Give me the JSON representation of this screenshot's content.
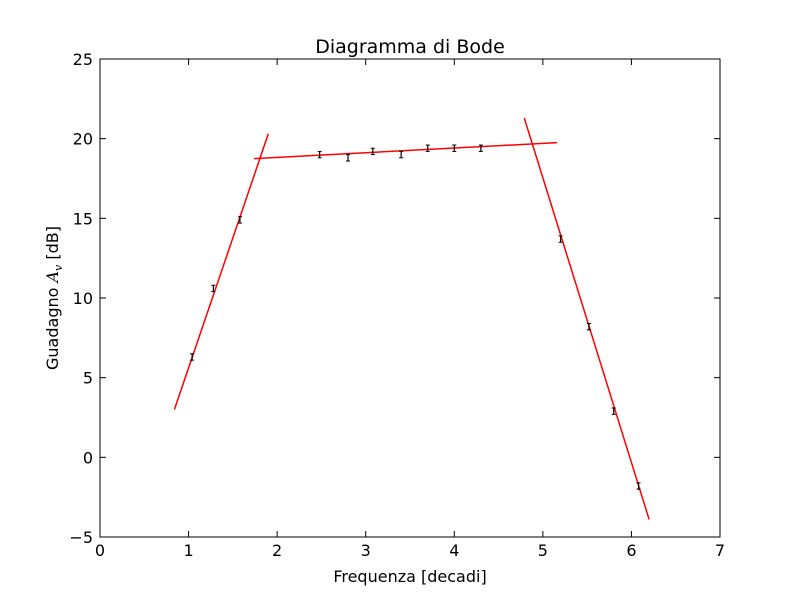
{
  "chart_data": {
    "type": "scatter",
    "title": "Diagramma di Bode",
    "xlabel": "Frequenza [decadi]",
    "ylabel_prefix": "Guadagno ",
    "ylabel_symbol": "A",
    "ylabel_subscript": "v",
    "ylabel_suffix": " [dB]",
    "xlim": [
      0,
      7
    ],
    "ylim": [
      -5,
      25
    ],
    "x_ticks": [
      0,
      1,
      2,
      3,
      4,
      5,
      6,
      7
    ],
    "y_ticks": [
      -5,
      0,
      5,
      10,
      15,
      20,
      25
    ],
    "x_tick_labels": [
      "0",
      "1",
      "2",
      "3",
      "4",
      "5",
      "6",
      "7"
    ],
    "y_tick_labels": [
      "−5",
      "0",
      "5",
      "10",
      "15",
      "20",
      "25"
    ],
    "grid": false,
    "measurements": [
      {
        "x": 1.04,
        "y": 6.3,
        "err": 0.2
      },
      {
        "x": 1.28,
        "y": 10.6,
        "err": 0.2
      },
      {
        "x": 1.58,
        "y": 14.9,
        "err": 0.2
      },
      {
        "x": 2.48,
        "y": 19.0,
        "err": 0.2
      },
      {
        "x": 2.8,
        "y": 18.8,
        "err": 0.2
      },
      {
        "x": 3.08,
        "y": 19.2,
        "err": 0.2
      },
      {
        "x": 3.4,
        "y": 19.0,
        "err": 0.2
      },
      {
        "x": 3.7,
        "y": 19.4,
        "err": 0.2
      },
      {
        "x": 4.0,
        "y": 19.4,
        "err": 0.2
      },
      {
        "x": 4.3,
        "y": 19.4,
        "err": 0.2
      },
      {
        "x": 5.2,
        "y": 13.7,
        "err": 0.2
      },
      {
        "x": 5.52,
        "y": 8.2,
        "err": 0.2
      },
      {
        "x": 5.8,
        "y": 2.9,
        "err": 0.2
      },
      {
        "x": 6.08,
        "y": -1.8,
        "err": 0.2
      }
    ],
    "fit_lines": [
      {
        "x": [
          0.84,
          1.9
        ],
        "y": [
          3.0,
          20.3
        ]
      },
      {
        "x": [
          1.74,
          5.16
        ],
        "y": [
          18.75,
          19.75
        ]
      },
      {
        "x": [
          4.79,
          6.2
        ],
        "y": [
          21.3,
          -3.9
        ]
      }
    ],
    "colors": {
      "fit": "#ff0000",
      "points": "#000000",
      "axes": "#000000"
    }
  }
}
